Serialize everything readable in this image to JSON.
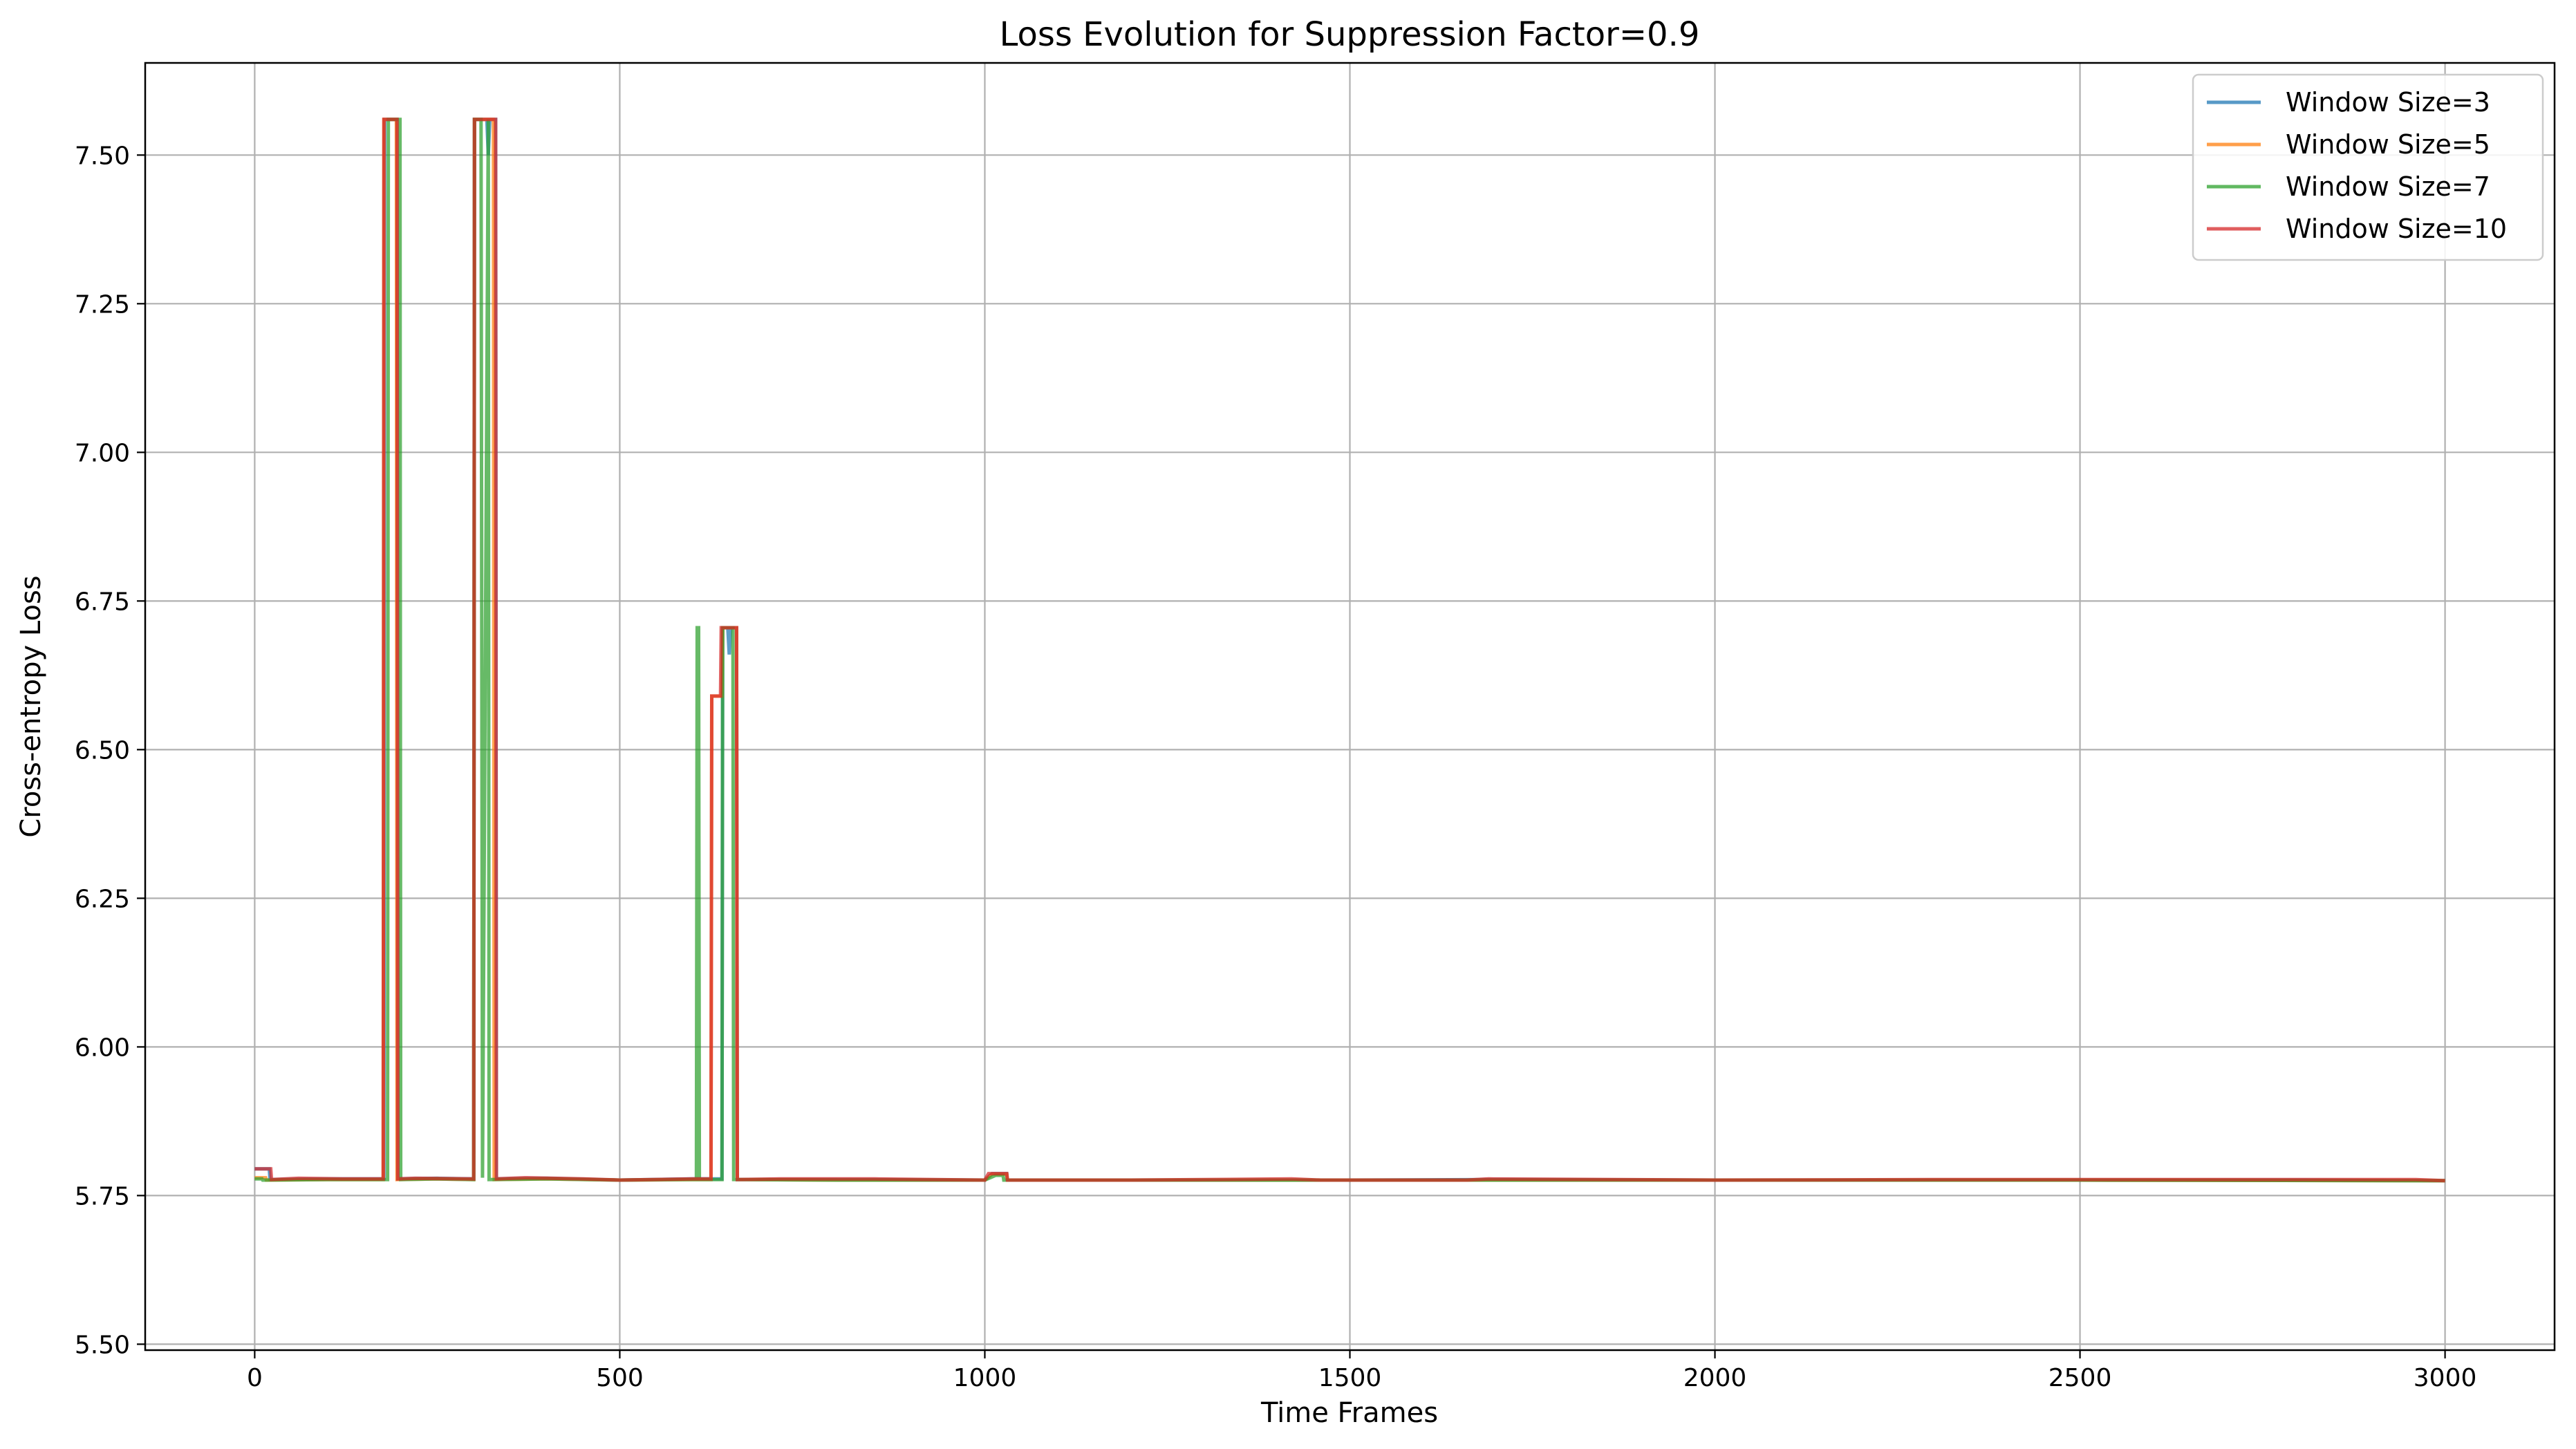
{
  "chart_data": {
    "type": "line",
    "title": "Loss Evolution for Suppression Factor=0.9",
    "xlabel": "Time Frames",
    "ylabel": "Cross-entropy Loss",
    "xlim": [
      -150,
      3150
    ],
    "ylim": [
      5.49,
      7.655
    ],
    "x_ticks": [
      0,
      500,
      1000,
      1500,
      2000,
      2500,
      3000
    ],
    "y_ticks": [
      5.5,
      5.75,
      6.0,
      6.25,
      6.5,
      6.75,
      7.0,
      7.25,
      7.5
    ],
    "x_tick_labels": [
      "0",
      "500",
      "1000",
      "1500",
      "2000",
      "2500",
      "3000"
    ],
    "y_tick_labels": [
      "5.50",
      "5.75",
      "6.00",
      "6.25",
      "6.50",
      "6.75",
      "7.00",
      "7.25",
      "7.50"
    ],
    "grid": true,
    "legend_position": "top-right",
    "series": [
      {
        "name": "Window Size=3",
        "color": "#1f77b4",
        "x": [
          0,
          20,
          21,
          100,
          177,
          178,
          195,
          196,
          250,
          300,
          301,
          318,
          320,
          322,
          330,
          331,
          400,
          500,
          600,
          640,
          641,
          648,
          650,
          652,
          660,
          661,
          800,
          1000,
          1010,
          1030,
          1031,
          1200,
          1500,
          1700,
          2000,
          2300,
          2600,
          2800,
          3000
        ],
        "y": [
          5.795,
          5.795,
          5.777,
          5.778,
          5.778,
          7.56,
          7.56,
          5.778,
          5.779,
          5.778,
          7.56,
          7.56,
          7.5,
          7.56,
          7.56,
          5.778,
          5.779,
          5.776,
          5.778,
          5.778,
          6.705,
          6.705,
          6.66,
          6.705,
          6.705,
          5.777,
          5.777,
          5.776,
          5.787,
          5.787,
          5.776,
          5.776,
          5.776,
          5.777,
          5.776,
          5.776,
          5.776,
          5.776,
          5.775
        ]
      },
      {
        "name": "Window Size=5",
        "color": "#ff7f0e",
        "x": [
          0,
          15,
          16,
          100,
          176,
          177,
          194,
          195,
          250,
          300,
          301,
          327,
          328,
          400,
          500,
          600,
          625,
          626,
          640,
          641,
          660,
          661,
          800,
          1000,
          1010,
          1030,
          1031,
          1200,
          1500,
          2000,
          2500,
          3000
        ],
        "y": [
          5.78,
          5.78,
          5.776,
          5.777,
          5.777,
          7.56,
          7.56,
          5.777,
          5.778,
          5.777,
          7.56,
          7.56,
          5.777,
          5.778,
          5.776,
          5.777,
          5.777,
          6.59,
          6.59,
          6.705,
          6.705,
          5.777,
          5.776,
          5.776,
          5.786,
          5.786,
          5.776,
          5.776,
          5.776,
          5.776,
          5.776,
          5.775
        ]
      },
      {
        "name": "Window Size=7",
        "color": "#2ca02c",
        "x": [
          0,
          10,
          11,
          100,
          182,
          183,
          199,
          200,
          250,
          300,
          301,
          310,
          312,
          320,
          321,
          400,
          500,
          605,
          606,
          608,
          609,
          640,
          641,
          655,
          656,
          800,
          1000,
          1015,
          1025,
          1026,
          1200,
          1500,
          2000,
          2500,
          3000
        ],
        "y": [
          5.778,
          5.778,
          5.776,
          5.777,
          5.777,
          7.56,
          7.56,
          5.777,
          5.778,
          5.777,
          7.56,
          7.56,
          5.78,
          7.56,
          5.777,
          5.778,
          5.776,
          5.777,
          6.705,
          6.705,
          5.777,
          5.777,
          6.705,
          6.705,
          5.777,
          5.776,
          5.776,
          5.784,
          5.784,
          5.776,
          5.776,
          5.776,
          5.776,
          5.776,
          5.775
        ]
      },
      {
        "name": "Window Size=10",
        "color": "#d62728",
        "x": [
          0,
          22,
          23,
          60,
          120,
          176,
          177,
          195,
          196,
          220,
          300,
          301,
          330,
          331,
          370,
          450,
          500,
          600,
          625,
          626,
          638,
          639,
          660,
          661,
          720,
          850,
          1000,
          1005,
          1030,
          1031,
          1200,
          1420,
          1460,
          1660,
          1690,
          2000,
          2330,
          2620,
          2840,
          2960,
          3000
        ],
        "y": [
          5.795,
          5.795,
          5.777,
          5.779,
          5.778,
          5.778,
          7.56,
          7.56,
          5.778,
          5.779,
          5.778,
          7.56,
          7.56,
          5.778,
          5.78,
          5.778,
          5.776,
          5.778,
          5.778,
          6.59,
          6.59,
          6.705,
          6.705,
          5.777,
          5.778,
          5.778,
          5.776,
          5.787,
          5.787,
          5.776,
          5.776,
          5.778,
          5.776,
          5.776,
          5.778,
          5.776,
          5.777,
          5.777,
          5.777,
          5.777,
          5.775
        ]
      }
    ]
  }
}
